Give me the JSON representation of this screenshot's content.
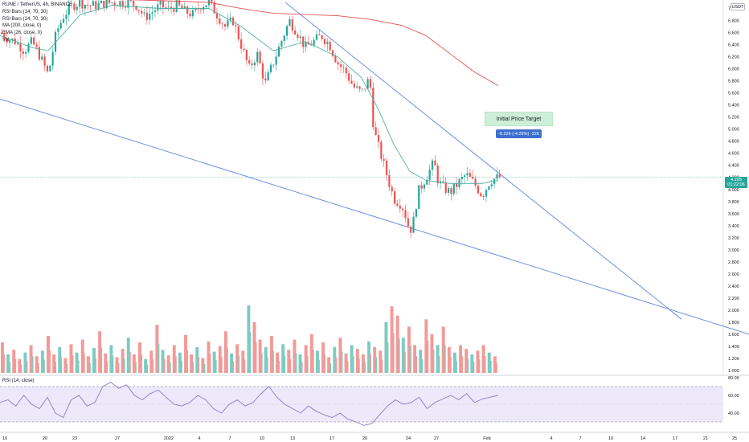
{
  "legend": {
    "title": "RUNE / TetherUS, 4h, BINANCE",
    "lines": [
      "RSI Bars (14, 70, 30)",
      "RSI Bars (14, 70, 30)",
      "MA (200, close, 0)",
      "EMA (26, close, 0)",
      "Vol"
    ]
  },
  "annotations": {
    "target_label": "Initial Price Target",
    "measure_label": "-0.226 (-4.29%) -226"
  },
  "price_tag": {
    "value": "4.205",
    "timer": "01:22:06"
  },
  "currency_tag": "USDT",
  "rsi_label": "RSI (14, close)",
  "colors": {
    "up": "#26a69a",
    "down": "#ef5350",
    "ema": "#4fb0a0",
    "ma": "#e05050",
    "trendline": "#6f8fe0",
    "rsi_line": "#8a7cc4",
    "rsi_band": "#ede9fb",
    "vol_up": "#7dcbc1",
    "vol_down": "#f29a98"
  },
  "chart_data": [
    {
      "type": "candlestick",
      "title": "RUNE / TetherUS, 4h, BINANCE",
      "ylim": [
        1.0,
        7.1
      ],
      "y_ticks": [
        "7.000",
        "6.800",
        "6.600",
        "6.400",
        "6.200",
        "6.000",
        "5.800",
        "5.600",
        "5.400",
        "5.200",
        "5.000",
        "4.800",
        "4.600",
        "4.400",
        "4.200",
        "4.000",
        "3.800",
        "3.600",
        "3.400",
        "3.200",
        "3.000",
        "2.800",
        "2.600",
        "2.400",
        "2.200",
        "2.000",
        "1.800",
        "1.600",
        "1.400",
        "1.200",
        "1.000"
      ],
      "x_ticks": [
        "16",
        "20",
        "23",
        "27",
        "2022",
        "4",
        "7",
        "10",
        "13",
        "17",
        "20",
        "24",
        "27",
        "Feb",
        "4",
        "7",
        "10",
        "14",
        "17",
        "21",
        "25"
      ],
      "price_path": [
        [
          0,
          6.6
        ],
        [
          10,
          6.5
        ],
        [
          20,
          6.45
        ],
        [
          30,
          6.3
        ],
        [
          40,
          6.45
        ],
        [
          50,
          6.2
        ],
        [
          60,
          5.9
        ],
        [
          70,
          6.6
        ],
        [
          80,
          6.9
        ],
        [
          90,
          7.05
        ],
        [
          100,
          7.1
        ],
        [
          110,
          7.05
        ],
        [
          120,
          7.05
        ],
        [
          130,
          7.08
        ],
        [
          140,
          7.1
        ],
        [
          150,
          7.1
        ],
        [
          160,
          7.1
        ],
        [
          170,
          7.05
        ],
        [
          180,
          6.85
        ],
        [
          190,
          6.95
        ],
        [
          200,
          7.05
        ],
        [
          210,
          6.98
        ],
        [
          220,
          7.05
        ],
        [
          230,
          6.95
        ],
        [
          240,
          6.9
        ],
        [
          250,
          7.05
        ],
        [
          260,
          7.1
        ],
        [
          270,
          6.9
        ],
        [
          280,
          6.7
        ],
        [
          290,
          6.8
        ],
        [
          300,
          6.4
        ],
        [
          310,
          6.0
        ],
        [
          320,
          6.25
        ],
        [
          330,
          5.75
        ],
        [
          340,
          6.1
        ],
        [
          350,
          6.45
        ],
        [
          360,
          6.8
        ],
        [
          370,
          6.6
        ],
        [
          380,
          6.35
        ],
        [
          390,
          6.45
        ],
        [
          400,
          6.55
        ],
        [
          410,
          6.4
        ],
        [
          420,
          6.1
        ],
        [
          430,
          5.95
        ],
        [
          440,
          5.7
        ],
        [
          450,
          5.6
        ],
        [
          460,
          5.85
        ],
        [
          465,
          5.0
        ],
        [
          470,
          4.75
        ],
        [
          480,
          4.3
        ],
        [
          490,
          3.85
        ],
        [
          500,
          3.75
        ],
        [
          505,
          3.55
        ],
        [
          510,
          3.3
        ],
        [
          515,
          3.5
        ],
        [
          520,
          3.95
        ],
        [
          530,
          4.2
        ],
        [
          540,
          4.45
        ],
        [
          545,
          4.15
        ],
        [
          550,
          4.05
        ],
        [
          560,
          3.95
        ],
        [
          570,
          4.1
        ],
        [
          580,
          4.25
        ],
        [
          590,
          4.1
        ],
        [
          600,
          3.9
        ],
        [
          610,
          4.15
        ],
        [
          620,
          4.2
        ]
      ],
      "ema26_path": [
        [
          0,
          6.55
        ],
        [
          40,
          6.35
        ],
        [
          60,
          6.3
        ],
        [
          80,
          6.6
        ],
        [
          100,
          6.9
        ],
        [
          140,
          7.05
        ],
        [
          200,
          7.0
        ],
        [
          260,
          7.0
        ],
        [
          300,
          6.7
        ],
        [
          340,
          6.3
        ],
        [
          380,
          6.45
        ],
        [
          420,
          6.2
        ],
        [
          450,
          5.85
        ],
        [
          470,
          5.35
        ],
        [
          490,
          4.75
        ],
        [
          510,
          4.3
        ],
        [
          530,
          4.15
        ],
        [
          560,
          4.1
        ],
        [
          600,
          4.1
        ],
        [
          620,
          4.15
        ]
      ],
      "ma200_path": [
        [
          150,
          7.15
        ],
        [
          220,
          7.12
        ],
        [
          260,
          7.1
        ],
        [
          300,
          7.0
        ],
        [
          340,
          6.92
        ],
        [
          380,
          6.9
        ],
        [
          420,
          6.88
        ],
        [
          460,
          6.82
        ],
        [
          500,
          6.72
        ],
        [
          530,
          6.55
        ],
        [
          560,
          6.25
        ],
        [
          590,
          5.95
        ],
        [
          620,
          5.72
        ]
      ],
      "trendlines": [
        {
          "from": [
            355,
            7.1
          ],
          "to": [
            848,
            1.85
          ]
        },
        {
          "from": [
            0,
            5.5
          ],
          "to": [
            932,
            1.6
          ]
        }
      ],
      "last_price": 4.205
    },
    {
      "type": "bar",
      "title": "Vol",
      "values": [
        0.33,
        0.2,
        0.25,
        0.15,
        0.22,
        0.3,
        0.18,
        0.24,
        0.4,
        0.2,
        0.28,
        0.16,
        0.31,
        0.22,
        0.36,
        0.18,
        0.27,
        0.45,
        0.21,
        0.3,
        0.17,
        0.26,
        0.38,
        0.2,
        0.33,
        0.15,
        0.24,
        0.52,
        0.25,
        0.19,
        0.3,
        0.22,
        0.41,
        0.2,
        0.28,
        0.16,
        0.34,
        0.23,
        0.29,
        0.45,
        0.21,
        0.31,
        0.24,
        0.73,
        0.55,
        0.36,
        0.28,
        0.4,
        0.22,
        0.31,
        0.25,
        0.36,
        0.2,
        0.3,
        0.42,
        0.24,
        0.33,
        0.17,
        0.28,
        0.38,
        0.21,
        0.3,
        0.26,
        0.2,
        0.34,
        0.28,
        0.24,
        0.55,
        0.72,
        0.62,
        0.38,
        0.5,
        0.3,
        0.25,
        0.58,
        0.42,
        0.3,
        0.5,
        0.28,
        0.22,
        0.3,
        0.26,
        0.2,
        0.24,
        0.3,
        0.22,
        0.18
      ]
    },
    {
      "type": "line",
      "title": "RSI (14, close)",
      "ylim": [
        20,
        80
      ],
      "y_ticks": [
        "80.00",
        "60.00",
        "40.00"
      ],
      "bands": [
        30,
        70
      ],
      "values": [
        52,
        55,
        48,
        60,
        50,
        45,
        58,
        40,
        35,
        55,
        60,
        48,
        52,
        70,
        75,
        68,
        72,
        60,
        55,
        62,
        66,
        58,
        50,
        48,
        52,
        60,
        55,
        45,
        40,
        50,
        55,
        48,
        52,
        62,
        70,
        58,
        50,
        45,
        40,
        48,
        42,
        38,
        35,
        40,
        33,
        30,
        26,
        28,
        38,
        48,
        55,
        50,
        52,
        58,
        45,
        52,
        56,
        60,
        55,
        62,
        52,
        56,
        58,
        60
      ]
    }
  ]
}
